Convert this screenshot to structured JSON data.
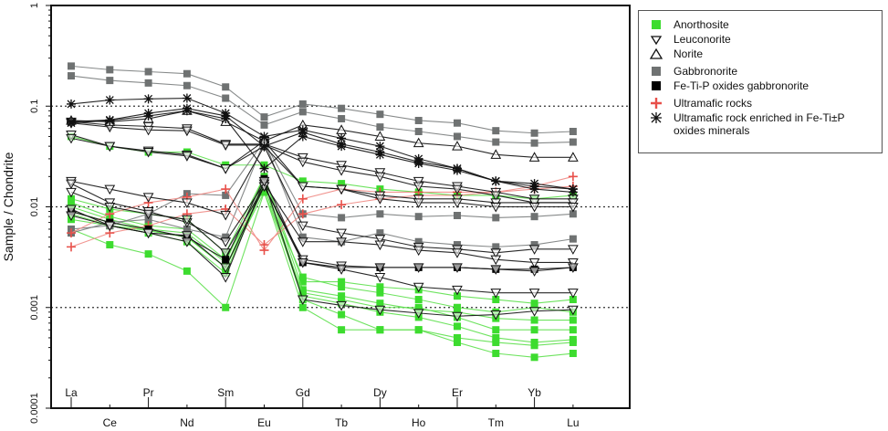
{
  "chart_data": {
    "type": "line",
    "title": "",
    "xlabel": "",
    "ylabel": "Sample / Chondrite",
    "yscale": "log",
    "ylim": [
      0.0001,
      1
    ],
    "yticks": [
      "0.0001",
      "0.001",
      "0.01",
      "0.1",
      "1"
    ],
    "grid": "dotted horizontal lines at 0.1, 0.01, 0.001",
    "legend_position": "right",
    "categories": [
      "La",
      "Ce",
      "Pr",
      "Nd",
      "Sm",
      "Eu",
      "Gd",
      "Tb",
      "Dy",
      "Ho",
      "Er",
      "Tm",
      "Yb",
      "Lu"
    ],
    "groups": [
      {
        "name": "Anorthosite",
        "color": "#3ddc2f",
        "marker": "square"
      },
      {
        "name": "Leuconorite",
        "color": "#222222",
        "marker": "triangle-down"
      },
      {
        "name": "Norite",
        "color": "#222222",
        "marker": "triangle-up"
      },
      {
        "name": "Gabbronorite",
        "color": "#6f7272",
        "marker": "square"
      },
      {
        "name": "Fe-Ti-P oxides gabbronorite",
        "color": "#000000",
        "marker": "square"
      },
      {
        "name": "Ultramafic rocks",
        "color": "#e8504a",
        "marker": "plus"
      },
      {
        "name": "Ultramafic rock enriched in Fe-Ti±P oxides minerals",
        "color": "#111111",
        "marker": "asterisk"
      }
    ],
    "series": [
      {
        "group": 0,
        "values": [
          0.05,
          0.04,
          0.035,
          0.035,
          0.026,
          0.026,
          0.018,
          0.017,
          0.015,
          0.014,
          0.013,
          0.013,
          0.012,
          0.013
        ]
      },
      {
        "group": 0,
        "values": [
          0.012,
          0.0095,
          0.0085,
          0.0075,
          0.0035,
          0.02,
          0.0018,
          0.0018,
          0.0016,
          0.0015,
          0.0013,
          0.0012,
          0.0011,
          0.0012
        ]
      },
      {
        "group": 0,
        "values": [
          0.01,
          0.0075,
          0.006,
          0.0055,
          0.0028,
          0.02,
          0.0015,
          0.0013,
          0.0011,
          0.00095,
          0.0009,
          0.00078,
          0.00075,
          0.00075
        ]
      },
      {
        "group": 0,
        "values": [
          0.009,
          0.007,
          0.0058,
          0.005,
          0.0025,
          0.018,
          0.0013,
          0.0011,
          0.0009,
          0.0008,
          0.00065,
          0.0005,
          0.00045,
          0.00048
        ]
      },
      {
        "group": 0,
        "values": [
          0.0085,
          0.0065,
          0.0055,
          0.0045,
          0.0022,
          0.016,
          0.0012,
          0.00085,
          0.0006,
          0.0006,
          0.0005,
          0.00045,
          0.00042,
          0.00045
        ]
      },
      {
        "group": 0,
        "values": [
          0.006,
          0.0042,
          0.0034,
          0.0023,
          0.001,
          0.014,
          0.001,
          0.0006,
          0.0006,
          0.0006,
          0.00045,
          0.00035,
          0.00032,
          0.00035
        ]
      },
      {
        "group": 0,
        "values": [
          0.011,
          0.008,
          0.0065,
          0.006,
          0.003,
          0.015,
          0.002,
          0.0016,
          0.0014,
          0.0012,
          0.001,
          0.0009,
          0.001,
          0.0009
        ]
      },
      {
        "group": 0,
        "values": [
          0.0075,
          0.0065,
          0.0058,
          0.005,
          0.0025,
          0.014,
          0.0014,
          0.0012,
          0.001,
          0.001,
          0.0008,
          0.0006,
          0.0006,
          0.0006
        ]
      },
      {
        "group": 3,
        "values": [
          0.25,
          0.23,
          0.22,
          0.21,
          0.155,
          0.078,
          0.105,
          0.095,
          0.083,
          0.072,
          0.068,
          0.057,
          0.054,
          0.056
        ]
      },
      {
        "group": 3,
        "values": [
          0.2,
          0.18,
          0.17,
          0.16,
          0.12,
          0.065,
          0.088,
          0.075,
          0.062,
          0.056,
          0.05,
          0.044,
          0.043,
          0.044
        ]
      },
      {
        "group": 3,
        "values": [
          0.006,
          0.0065,
          0.0085,
          0.0135,
          0.013,
          0.045,
          0.0085,
          0.0078,
          0.0085,
          0.008,
          0.0082,
          0.0078,
          0.008,
          0.0085
        ]
      },
      {
        "group": 3,
        "values": [
          0.0055,
          0.007,
          0.0075,
          0.006,
          0.005,
          0.045,
          0.005,
          0.0045,
          0.0055,
          0.0045,
          0.0042,
          0.004,
          0.0042,
          0.0048
        ]
      },
      {
        "group": 5,
        "values": [
          0.004,
          0.0055,
          0.0065,
          0.0085,
          0.0095,
          0.0042,
          0.0085,
          0.0105,
          0.012,
          0.013,
          0.013,
          0.014,
          0.016,
          0.02
        ]
      },
      {
        "group": 5,
        "values": [
          0.0055,
          0.0085,
          0.011,
          0.0125,
          0.015,
          0.0037,
          0.012,
          0.015,
          0.014,
          0.014,
          0.014,
          0.014,
          0.015,
          0.016
        ]
      },
      {
        "group": 4,
        "values": [
          0.009,
          0.007,
          0.006,
          0.005,
          0.003,
          0.019,
          0.0028,
          0.0025,
          0.0025,
          0.0025,
          0.0025,
          0.0024,
          0.0024,
          0.0025
        ]
      },
      {
        "group": 1,
        "values": [
          0.07,
          0.065,
          0.063,
          0.06,
          0.042,
          0.042,
          0.031,
          0.026,
          0.022,
          0.018,
          0.016,
          0.014,
          0.012,
          0.012
        ]
      },
      {
        "group": 1,
        "values": [
          0.068,
          0.062,
          0.058,
          0.057,
          0.041,
          0.041,
          0.028,
          0.023,
          0.02,
          0.016,
          0.015,
          0.013,
          0.011,
          0.011
        ]
      },
      {
        "group": 1,
        "values": [
          0.052,
          0.04,
          0.036,
          0.033,
          0.024,
          0.045,
          0.016,
          0.015,
          0.013,
          0.012,
          0.012,
          0.011,
          0.011,
          0.011
        ]
      },
      {
        "group": 1,
        "values": [
          0.048,
          0.04,
          0.035,
          0.032,
          0.024,
          0.04,
          0.016,
          0.015,
          0.012,
          0.011,
          0.011,
          0.01,
          0.01,
          0.01
        ]
      },
      {
        "group": 1,
        "values": [
          0.018,
          0.015,
          0.0125,
          0.011,
          0.0083,
          0.04,
          0.0065,
          0.0055,
          0.0048,
          0.004,
          0.0038,
          0.0035,
          0.0038,
          0.0038
        ]
      },
      {
        "group": 1,
        "values": [
          0.017,
          0.011,
          0.009,
          0.007,
          0.0045,
          0.017,
          0.0045,
          0.0045,
          0.0042,
          0.0037,
          0.0035,
          0.003,
          0.0028,
          0.0028
        ]
      },
      {
        "group": 1,
        "values": [
          0.014,
          0.01,
          0.0085,
          0.0075,
          0.0035,
          0.016,
          0.003,
          0.0026,
          0.0025,
          0.0025,
          0.0025,
          0.0024,
          0.0023,
          0.0025
        ]
      },
      {
        "group": 1,
        "values": [
          0.0095,
          0.0065,
          0.0055,
          0.0052,
          0.0025,
          0.016,
          0.0028,
          0.0024,
          0.002,
          0.0016,
          0.0015,
          0.0014,
          0.0014,
          0.0014
        ]
      },
      {
        "group": 1,
        "values": [
          0.0082,
          0.0065,
          0.0055,
          0.0045,
          0.002,
          0.018,
          0.0012,
          0.00105,
          0.00095,
          0.00088,
          0.00082,
          0.00085,
          0.00092,
          0.00095
        ]
      },
      {
        "group": 2,
        "values": [
          0.072,
          0.07,
          0.075,
          0.09,
          0.07,
          0.045,
          0.065,
          0.058,
          0.05,
          0.043,
          0.04,
          0.033,
          0.031,
          0.031
        ]
      },
      {
        "group": 6,
        "values": [
          0.105,
          0.115,
          0.118,
          0.12,
          0.085,
          0.05,
          0.058,
          0.048,
          0.04,
          0.03,
          0.024,
          0.018,
          0.017,
          0.015
        ]
      },
      {
        "group": 6,
        "values": [
          0.07,
          0.073,
          0.085,
          0.095,
          0.08,
          0.04,
          0.055,
          0.042,
          0.035,
          0.028,
          0.024,
          0.018,
          0.015,
          0.014
        ]
      },
      {
        "group": 6,
        "values": [
          0.068,
          0.072,
          0.08,
          0.09,
          0.075,
          0.024,
          0.05,
          0.04,
          0.033,
          0.027,
          0.023,
          0.018,
          0.016,
          0.015
        ]
      }
    ]
  }
}
